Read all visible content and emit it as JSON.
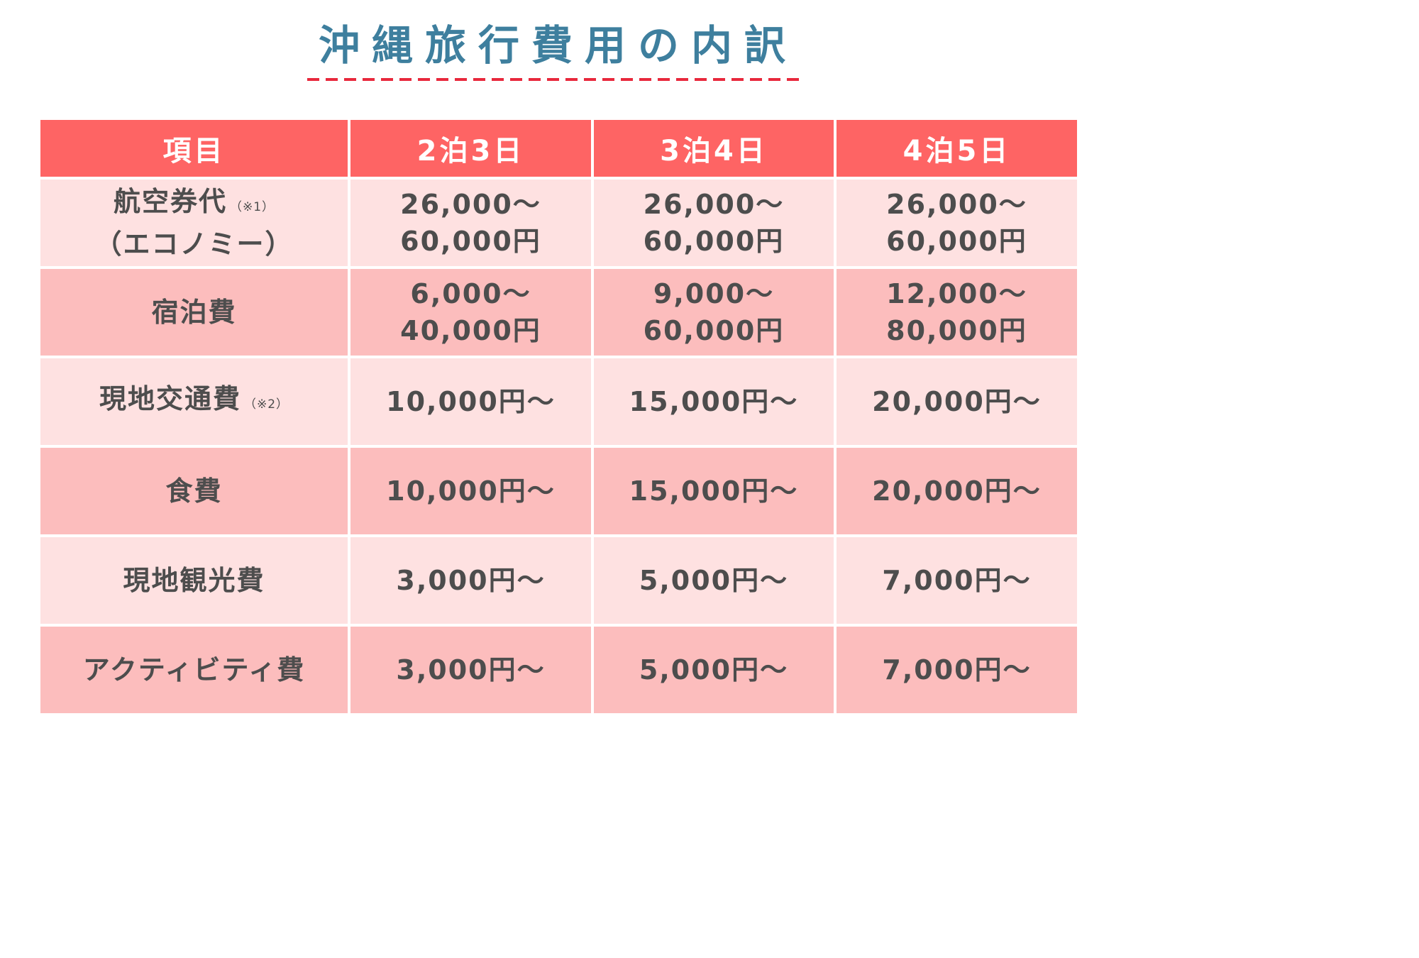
{
  "title": "沖縄旅行費用の内訳",
  "colors": {
    "title": "#3e7f9e",
    "underline": "#e8283c",
    "header_bg": "#fe6464",
    "row_light": "#fee1e1",
    "row_dark": "#fcbdbd",
    "text": "#4d4d4d"
  },
  "chart_data": {
    "type": "table",
    "columns": [
      "項目",
      "2泊3日",
      "3泊4日",
      "4泊5日"
    ],
    "rows": [
      {
        "label": "航空券代",
        "note": "（※1）",
        "label_line2": "（エコノミー）",
        "values": [
          [
            "26,000～",
            "60,000円"
          ],
          [
            "26,000～",
            "60,000円"
          ],
          [
            "26,000～",
            "60,000円"
          ]
        ]
      },
      {
        "label": "宿泊費",
        "note": "",
        "label_line2": "",
        "values": [
          [
            "6,000～",
            "40,000円"
          ],
          [
            "9,000～",
            "60,000円"
          ],
          [
            "12,000～",
            "80,000円"
          ]
        ]
      },
      {
        "label": "現地交通費",
        "note": "（※2）",
        "label_line2": "",
        "values": [
          [
            "10,000円～"
          ],
          [
            "15,000円～"
          ],
          [
            "20,000円～"
          ]
        ]
      },
      {
        "label": "食費",
        "note": "",
        "label_line2": "",
        "values": [
          [
            "10,000円～"
          ],
          [
            "15,000円～"
          ],
          [
            "20,000円～"
          ]
        ]
      },
      {
        "label": "現地観光費",
        "note": "",
        "label_line2": "",
        "values": [
          [
            "3,000円～"
          ],
          [
            "5,000円～"
          ],
          [
            "7,000円～"
          ]
        ]
      },
      {
        "label": "アクティビティ費",
        "note": "",
        "label_line2": "",
        "values": [
          [
            "3,000円～"
          ],
          [
            "5,000円～"
          ],
          [
            "7,000円～"
          ]
        ]
      }
    ]
  }
}
